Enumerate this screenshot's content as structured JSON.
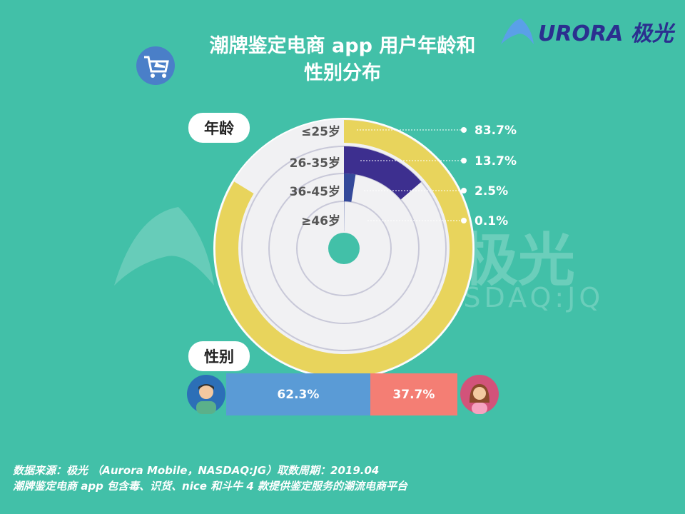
{
  "title_line1": "潮牌鉴定电商 app 用户年龄和",
  "title_line2": "性别分布",
  "logo_text": "URORA 极光",
  "watermark": {
    "main": "URORA 极光",
    "sub": "NASDAQ:JQ"
  },
  "chart_data": [
    {
      "type": "radial-bar",
      "title": "年龄",
      "unit": "%",
      "categories": [
        "≤25岁",
        "26-35岁",
        "36-45岁",
        "≥46岁"
      ],
      "values": [
        83.7,
        13.7,
        2.5,
        0.1
      ],
      "labels": [
        "83.7%",
        "13.7%",
        "2.5%",
        "0.1%"
      ],
      "colors": [
        "#e8d45c",
        "#3d2f8f",
        "#34499a",
        "#34499a"
      ]
    },
    {
      "type": "bar",
      "title": "性别",
      "orientation": "horizontal-stacked",
      "categories": [
        "男",
        "女"
      ],
      "values": [
        62.3,
        37.7
      ],
      "labels": [
        "62.3%",
        "37.7%"
      ],
      "colors": [
        "#5a9bd6",
        "#f47e74"
      ]
    }
  ],
  "icons": {
    "cart": "cart-sneaker-icon",
    "male": "male-avatar-icon",
    "female": "female-avatar-icon"
  },
  "footer": {
    "line1": "数据来源：极光 （Aurora Mobile，NASDAQ:JG）取数周期：2019.04",
    "line2": "潮牌鉴定电商 app 包含毒、识货、nice 和斗牛 4 款提供鉴定服务的潮流电商平台"
  }
}
